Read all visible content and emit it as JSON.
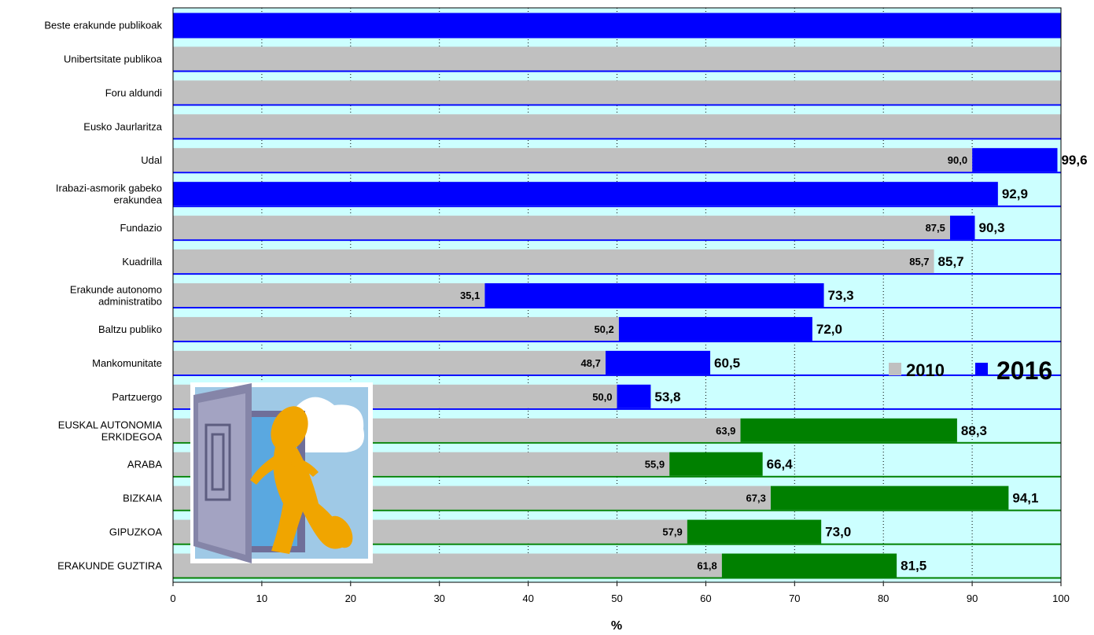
{
  "chart_data": {
    "type": "bar",
    "orientation": "horizontal",
    "categories": [
      "Beste erakunde publikoak",
      "Unibertsitate publikoa",
      "Foru aldundi",
      "Eusko Jaurlaritza",
      "Udal",
      "Irabazi-asmorik gabeko erakundea",
      "Fundazio",
      "Kuadrilla",
      "Erakunde autonomo administratibo",
      "Baltzu publiko",
      "Mankomunitate",
      "Partzuergo",
      "EUSKAL AUTONOMIA ERKIDEGOA",
      "ARABA",
      "BIZKAIA",
      "GIPUZKOA",
      "ERAKUNDE GUZTIRA"
    ],
    "category_lines": [
      [
        "Beste erakunde publikoak"
      ],
      [
        "Unibertsitate publikoa"
      ],
      [
        "Foru aldundi"
      ],
      [
        "Eusko Jaurlaritza"
      ],
      [
        "Udal"
      ],
      [
        "Irabazi-asmorik gabeko",
        "erakundea"
      ],
      [
        "Fundazio"
      ],
      [
        "Kuadrilla"
      ],
      [
        "Erakunde autonomo",
        "administratibo"
      ],
      [
        "Baltzu publiko"
      ],
      [
        "Mankomunitate"
      ],
      [
        "Partzuergo"
      ],
      [
        "EUSKAL AUTONOMIA",
        "ERKIDEGOA"
      ],
      [
        "ARABA"
      ],
      [
        "BIZKAIA"
      ],
      [
        "GIPUZKOA"
      ],
      [
        "ERAKUNDE GUZTIRA"
      ]
    ],
    "series": [
      {
        "name": "2010",
        "values": [
          null,
          100,
          100,
          100,
          90.0,
          null,
          87.5,
          85.7,
          35.1,
          50.2,
          48.7,
          50.0,
          63.9,
          55.9,
          67.3,
          57.9,
          61.8
        ],
        "labels": [
          "",
          "",
          "",
          "",
          "90,0",
          "",
          "87,5",
          "85,7",
          "35,1",
          "50,2",
          "48,7",
          "50,0",
          "63,9",
          "55,9",
          "67,3",
          "57,9",
          "61,8"
        ]
      },
      {
        "name": "2016",
        "values": [
          100,
          100,
          100,
          100,
          99.6,
          92.9,
          90.3,
          85.7,
          73.3,
          72.0,
          60.5,
          53.8,
          88.3,
          66.4,
          94.1,
          73.0,
          81.5
        ],
        "labels": [
          "",
          "",
          "",
          "",
          "99,6",
          "92,9",
          "90,3",
          "85,7",
          "73,3",
          "72,0",
          "60,5",
          "53,8",
          "88,3",
          "66,4",
          "94,1",
          "73,0",
          "81,5"
        ]
      }
    ],
    "bar_colors_2016": [
      "#0000ff",
      "#0000ff",
      "#0000ff",
      "#0000ff",
      "#0000ff",
      "#0000ff",
      "#0000ff",
      "#0000ff",
      "#0000ff",
      "#0000ff",
      "#0000ff",
      "#0000ff",
      "#008000",
      "#008000",
      "#008000",
      "#008000",
      "#008000"
    ],
    "color_2010": "#c0c0c0",
    "plot_background": "#ccffff",
    "xlim": [
      0,
      100
    ],
    "xticks": [
      "0",
      "10",
      "20",
      "30",
      "40",
      "50",
      "60",
      "70",
      "80",
      "90",
      "100"
    ],
    "xlabel": "%",
    "title": "",
    "grid": "vertical dotted",
    "legend": {
      "position": "right",
      "items": [
        {
          "label": "2010",
          "color": "#c0c0c0"
        },
        {
          "label": "2016",
          "color": "#0000ff"
        }
      ]
    }
  },
  "illustration": {
    "icon": "door-character-icon"
  }
}
